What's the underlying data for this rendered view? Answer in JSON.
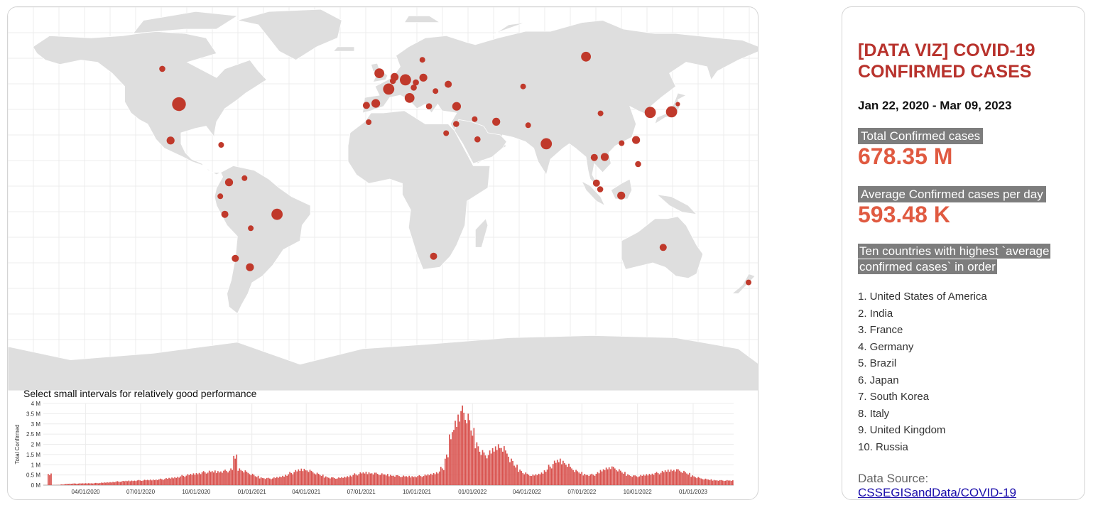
{
  "colors": {
    "land": "#dedede",
    "grid": "#ececec",
    "bubble": "#c0392b",
    "bar": "#d9534f",
    "title": "#b8322c",
    "value": "#e05a41",
    "label_bg": "#7d7d7d"
  },
  "map": {
    "bubbles": [
      {
        "name": "United States of America",
        "lon": -98,
        "lat": 40,
        "size": 3
      },
      {
        "name": "India",
        "lon": 78,
        "lat": 22,
        "size": 2
      },
      {
        "name": "France",
        "lon": 2.5,
        "lat": 46.8,
        "size": 2
      },
      {
        "name": "Germany",
        "lon": 10.5,
        "lat": 51,
        "size": 2
      },
      {
        "name": "Brazil",
        "lon": -51,
        "lat": -10,
        "size": 2
      },
      {
        "name": "Japan",
        "lon": 138,
        "lat": 36.5,
        "size": 2
      },
      {
        "name": "South Korea",
        "lon": 127.8,
        "lat": 36.2,
        "size": 2
      },
      {
        "name": "Italy",
        "lon": 12.5,
        "lat": 42.8,
        "size": 1.5
      },
      {
        "name": "United Kingdom",
        "lon": -2,
        "lat": 54,
        "size": 1.5
      },
      {
        "name": "Russia",
        "lon": 97,
        "lat": 61.5,
        "size": 1.5
      },
      {
        "name": "Turkey",
        "lon": 35,
        "lat": 39,
        "size": 1.2
      },
      {
        "name": "Spain",
        "lon": -3.7,
        "lat": 40.3,
        "size": 1.2
      },
      {
        "name": "Vietnam",
        "lon": 106,
        "lat": 16,
        "size": 1
      },
      {
        "name": "Australia",
        "lon": 134,
        "lat": -25,
        "size": 0.8
      },
      {
        "name": "Argentina",
        "lon": -64,
        "lat": -34,
        "size": 1
      },
      {
        "name": "Iran",
        "lon": 54,
        "lat": 32,
        "size": 1
      },
      {
        "name": "Mexico",
        "lon": -102,
        "lat": 23.5,
        "size": 1
      },
      {
        "name": "Netherlands",
        "lon": 5.3,
        "lat": 52.3,
        "size": 1
      },
      {
        "name": "Indonesia",
        "lon": 113.9,
        "lat": -1.5,
        "size": 1
      },
      {
        "name": "Poland",
        "lon": 19.1,
        "lat": 52,
        "size": 1
      },
      {
        "name": "Colombia",
        "lon": -74,
        "lat": 4.5,
        "size": 1
      },
      {
        "name": "Taiwan",
        "lon": 121,
        "lat": 23.7,
        "size": 1
      },
      {
        "name": "Chile",
        "lon": -71,
        "lat": -30,
        "size": 0.8
      },
      {
        "name": "Peru",
        "lon": -76,
        "lat": -10,
        "size": 0.8
      },
      {
        "name": "Ukraine",
        "lon": 31,
        "lat": 49,
        "size": 0.8
      },
      {
        "name": "Malaysia",
        "lon": 102,
        "lat": 4.2,
        "size": 0.8
      },
      {
        "name": "Thailand",
        "lon": 101,
        "lat": 15.8,
        "size": 0.8
      },
      {
        "name": "South Africa",
        "lon": 24,
        "lat": -29,
        "size": 0.8
      },
      {
        "name": "Canada",
        "lon": -106,
        "lat": 56,
        "size": 0.6
      },
      {
        "name": "Philippines",
        "lon": 122,
        "lat": 12.8,
        "size": 0.6
      },
      {
        "name": "Israel",
        "lon": 34.8,
        "lat": 31,
        "size": 0.6
      },
      {
        "name": "Saudi Arabia",
        "lon": 45,
        "lat": 24,
        "size": 0.6
      },
      {
        "name": "Egypt",
        "lon": 30,
        "lat": 26.8,
        "size": 0.5
      },
      {
        "name": "Pakistan",
        "lon": 69.3,
        "lat": 30.4,
        "size": 0.5
      },
      {
        "name": "Kazakhstan",
        "lon": 66.9,
        "lat": 48,
        "size": 0.5
      },
      {
        "name": "China",
        "lon": 104,
        "lat": 35.8,
        "size": 0.5
      },
      {
        "name": "Portugal",
        "lon": -8.2,
        "lat": 39.4,
        "size": 0.8
      },
      {
        "name": "Greece",
        "lon": 21.8,
        "lat": 39,
        "size": 0.6
      },
      {
        "name": "Czechia",
        "lon": 15.5,
        "lat": 49.8,
        "size": 0.6
      },
      {
        "name": "Austria",
        "lon": 14.5,
        "lat": 47.5,
        "size": 0.6
      },
      {
        "name": "Belgium",
        "lon": 4.5,
        "lat": 50.5,
        "size": 0.6
      },
      {
        "name": "Sweden",
        "lon": 18.6,
        "lat": 60.1,
        "size": 0.5
      },
      {
        "name": "Romania",
        "lon": 24.9,
        "lat": 45.9,
        "size": 0.5
      },
      {
        "name": "New Zealand",
        "lon": 174.9,
        "lat": -40.9,
        "size": 0.5
      },
      {
        "name": "Cuba",
        "lon": -77.8,
        "lat": 21.5,
        "size": 0.5
      },
      {
        "name": "Bolivia",
        "lon": -63.6,
        "lat": -16.3,
        "size": 0.5
      },
      {
        "name": "Ecuador",
        "lon": -78.2,
        "lat": -1.8,
        "size": 0.5
      },
      {
        "name": "Venezuela",
        "lon": -66.6,
        "lat": 6.4,
        "size": 0.5
      },
      {
        "name": "Morocco",
        "lon": -7.1,
        "lat": 31.8,
        "size": 0.5
      },
      {
        "name": "Iraq",
        "lon": 43.7,
        "lat": 33.2,
        "size": 0.5
      },
      {
        "name": "Japan-2",
        "lon": 141,
        "lat": 40,
        "size": 0.3
      },
      {
        "name": "Singapore",
        "lon": 103.8,
        "lat": 1.35,
        "size": 0.6
      },
      {
        "name": "Hong Kong",
        "lon": 114.1,
        "lat": 22.3,
        "size": 0.5
      }
    ]
  },
  "chart_data": {
    "type": "bar",
    "title": "Select small intervals for relatively good performance",
    "ylabel": "Total Confirmed",
    "xlabel": "",
    "y_ticks": [
      "0 M",
      "0.5 M",
      "1 M",
      "1.5 M",
      "2 M",
      "2.5 M",
      "3 M",
      "3.5 M",
      "4 M"
    ],
    "ylim": [
      0,
      4000000
    ],
    "x_ticks": [
      "04/01/2020",
      "07/01/2020",
      "10/01/2020",
      "01/01/2021",
      "04/01/2021",
      "07/01/2021",
      "10/01/2021",
      "01/01/2022",
      "04/01/2022",
      "07/01/2022",
      "10/01/2022",
      "01/01/2023"
    ],
    "x_range": [
      "2020-01-22",
      "2023-03-09"
    ],
    "series": [
      {
        "values_weekly_avg_daily": [
          5000,
          600000,
          8000,
          15000,
          40000,
          70000,
          80000,
          85000,
          90000,
          95000,
          100000,
          100000,
          110000,
          125000,
          140000,
          155000,
          175000,
          195000,
          210000,
          225000,
          235000,
          245000,
          255000,
          265000,
          275000,
          285000,
          300000,
          320000,
          345000,
          375000,
          410000,
          450000,
          500000,
          540000,
          580000,
          620000,
          660000,
          690000,
          710000,
          720000,
          720000,
          740000,
          760000,
          820000,
          1500000,
          860000,
          760000,
          660000,
          560000,
          460000,
          400000,
          370000,
          360000,
          380000,
          420000,
          480000,
          560000,
          650000,
          740000,
          810000,
          840000,
          790000,
          700000,
          610000,
          520000,
          450000,
          400000,
          380000,
          380000,
          410000,
          460000,
          520000,
          580000,
          630000,
          660000,
          660000,
          640000,
          610000,
          580000,
          550000,
          530000,
          510000,
          490000,
          470000,
          460000,
          460000,
          470000,
          490000,
          520000,
          560000,
          620000,
          700000,
          900000,
          1500000,
          2600000,
          3300000,
          3800000,
          3900000,
          3500000,
          2800000,
          2200000,
          1800000,
          1600000,
          1700000,
          1900000,
          2100000,
          2000000,
          1700000,
          1300000,
          1000000,
          800000,
          650000,
          560000,
          520000,
          560000,
          650000,
          800000,
          1000000,
          1200000,
          1300000,
          1250000,
          1100000,
          900000,
          750000,
          650000,
          580000,
          550000,
          560000,
          640000,
          780000,
          900000,
          960000,
          900000,
          780000,
          650000,
          560000,
          500000,
          480000,
          500000,
          540000,
          580000,
          620000,
          650000,
          700000,
          760000,
          800000,
          820000,
          780000,
          700000,
          600000,
          500000,
          420000,
          360000,
          320000,
          290000,
          270000,
          260000,
          250000,
          250000,
          240000
        ]
      }
    ]
  },
  "info": {
    "title": "[DATA VIZ] COVID-19 CONFIRMED CASES",
    "date_range": "Jan 22, 2020 - Mar 09, 2023",
    "total_label": "Total Confirmed cases",
    "total_value": "678.35 M",
    "avg_label": "Average Confirmed cases per day",
    "avg_value": "593.48 K",
    "top_label": "Ten countries with highest `average confirmed cases` in order",
    "top_countries": [
      "1. United States of America",
      "2. India",
      "3. France",
      "4. Germany",
      "5. Brazil",
      "6. Japan",
      "7. South Korea",
      "8. Italy",
      "9. United Kingdom",
      "10. Russia"
    ],
    "source_label": "Data Source:",
    "source_link": "CSSEGISandData/COVID-19"
  }
}
